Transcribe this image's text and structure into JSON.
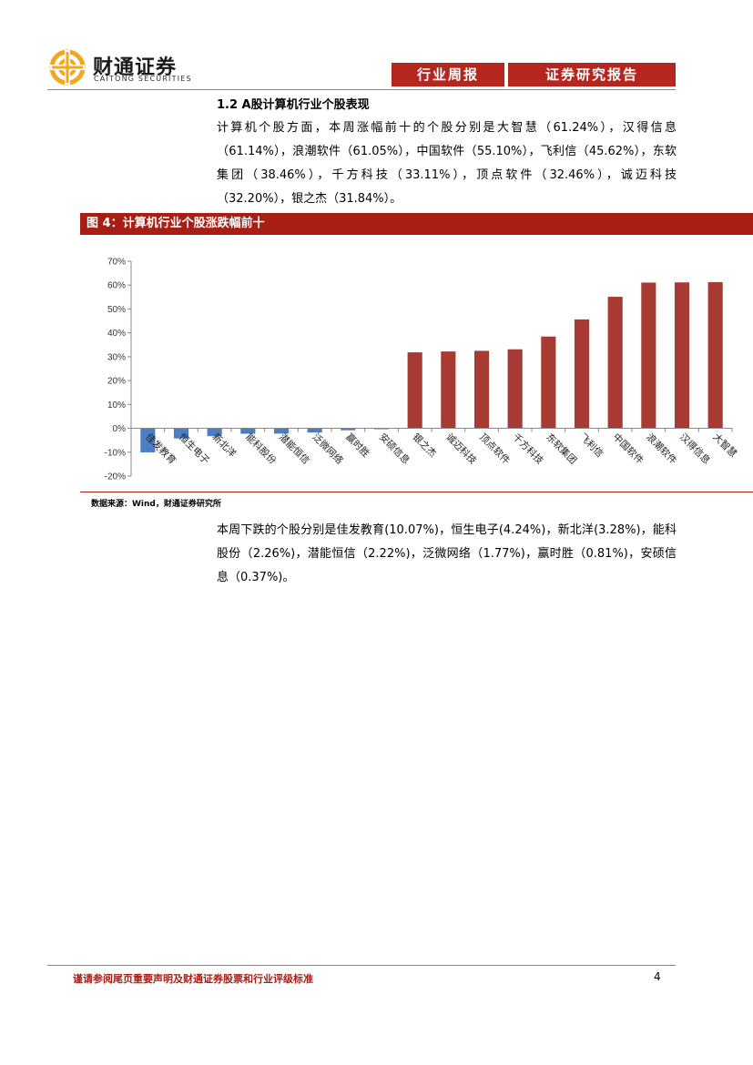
{
  "header": {
    "logo_cn": "财通证券",
    "logo_en": "CAITONG SECURITIES",
    "tab1": "行业周报",
    "tab2": "证券研究报告",
    "brand_color": "#b5261e"
  },
  "section": {
    "title": "1.2  A股计算机行业个股表现",
    "para1": "计算机个股方面，本周涨幅前十的个股分别是大智慧（61.24%），汉得信息（61.14%），浪潮软件（61.05%），中国软件（55.10%），飞利信（45.62%），东软集团（38.46%），千方科技（33.11%），顶点软件（32.46%），诚迈科技（32.20%），银之杰（31.84%）。",
    "para2": "本周下跌的个股分别是佳发教育(10.07%)，恒生电子(4.24%)，新北洋(3.28%)，能科股份（2.26%)，潜能恒信（2.22%)，泛微网络（1.77%)，赢时胜（0.81%)，安硕信息（0.37%)。"
  },
  "figure": {
    "title": "图 4：计算机行业个股涨跌幅前十",
    "source": "数据来源：Wind，财通证券研究所"
  },
  "chart_data": {
    "type": "bar",
    "categories": [
      "佳发教育",
      "恒生电子",
      "新北洋",
      "能科股份",
      "潜能恒信",
      "泛微网络",
      "赢时胜",
      "安硕信息",
      "银之杰",
      "诚迈科技",
      "顶点软件",
      "千方科技",
      "东软集团",
      "飞利信",
      "中国软件",
      "浪潮软件",
      "汉得信息",
      "大智慧"
    ],
    "values": [
      -10.07,
      -4.24,
      -3.28,
      -2.26,
      -2.22,
      -1.77,
      -0.81,
      -0.37,
      31.84,
      32.2,
      32.46,
      33.11,
      38.46,
      45.62,
      55.1,
      61.05,
      61.14,
      61.24
    ],
    "yticks": [
      "70%",
      "60%",
      "50%",
      "40%",
      "30%",
      "20%",
      "10%",
      "0%",
      "-10%",
      "-20%"
    ],
    "ylim": [
      -20,
      70
    ],
    "positive_color": "#a83a34",
    "negative_color": "#4a7ec5",
    "grid": false,
    "legend": "none"
  },
  "footer": {
    "disclaimer": "谨请参阅尾页重要声明及财通证券股票和行业评级标准",
    "page": "4"
  }
}
